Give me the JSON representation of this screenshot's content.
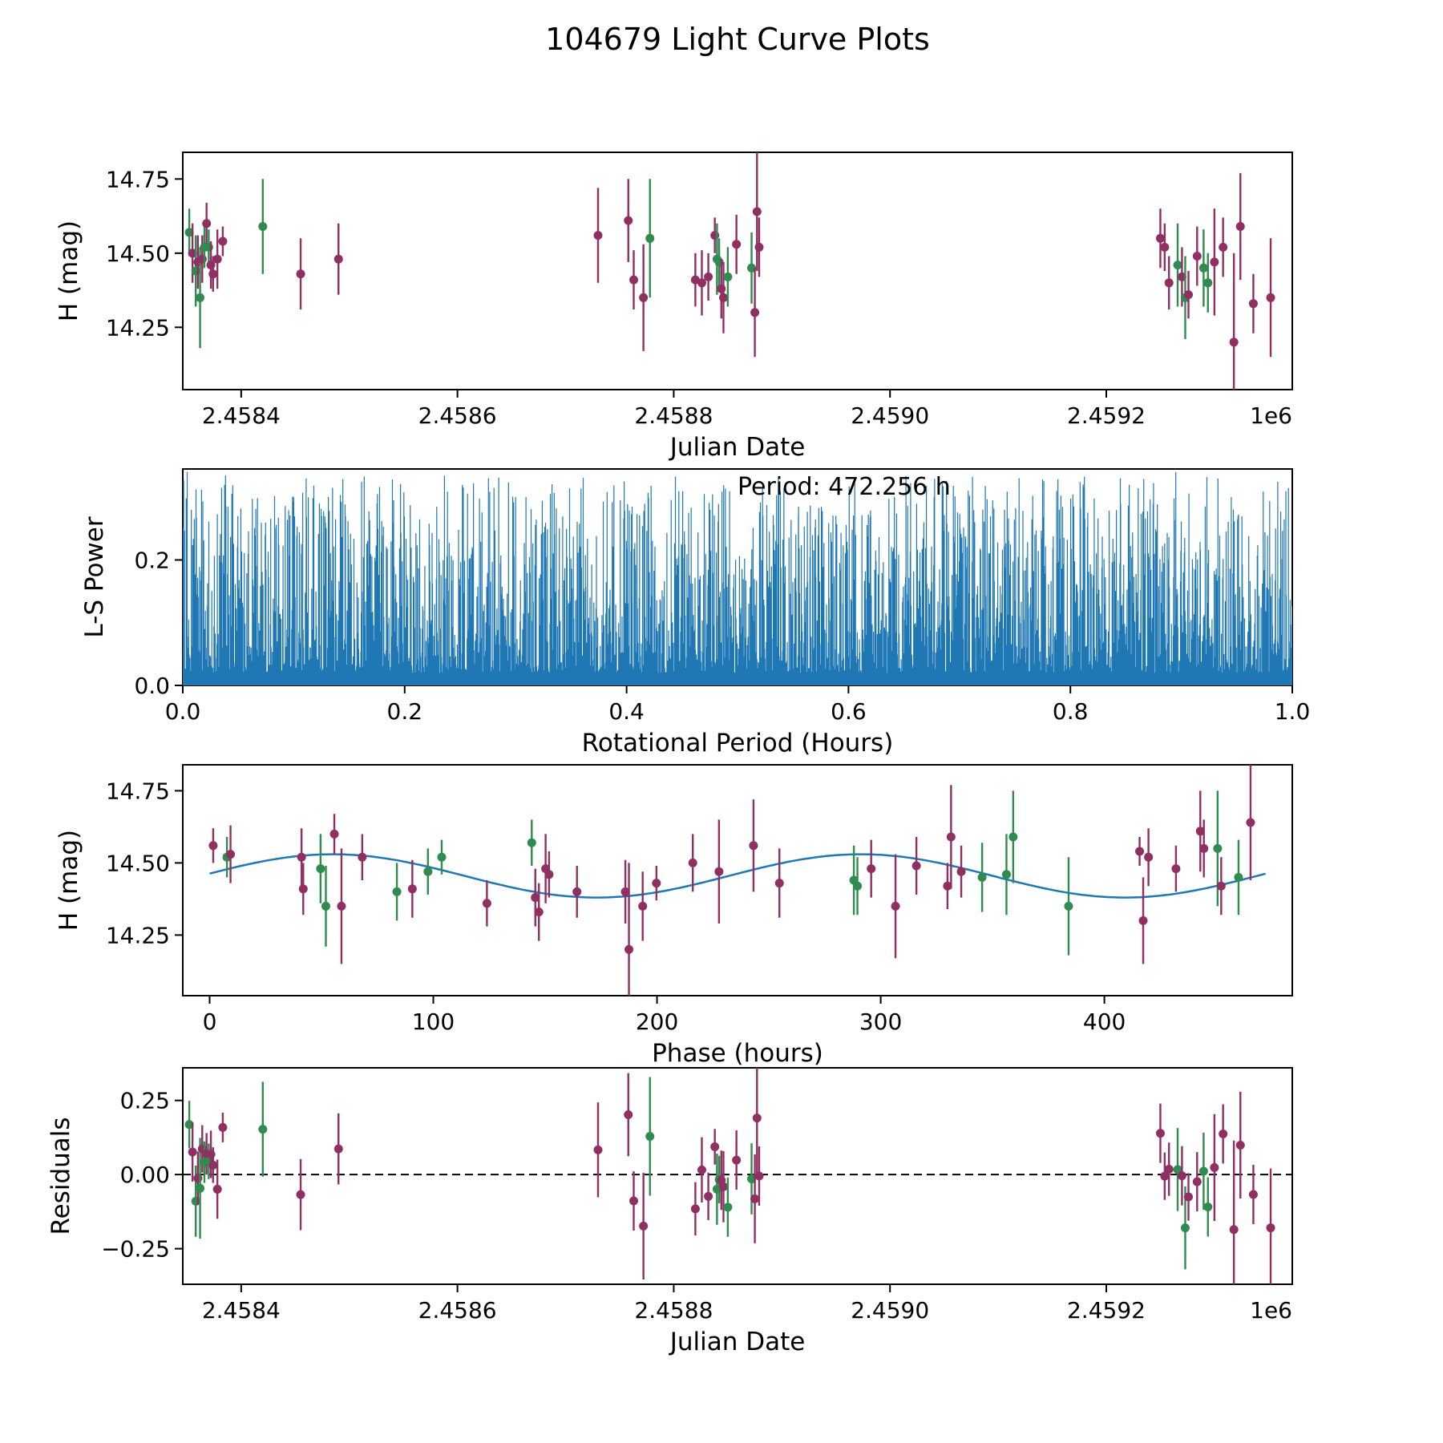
{
  "title": "104679 Light Curve Plots",
  "colors": {
    "purple": "#8f2f62",
    "green": "#2f8b4e",
    "blue": "#1f77b4",
    "axis": "#000000"
  },
  "chart_data": {
    "type": "scatter",
    "panels": [
      {
        "name": "light-curve",
        "type": "scatter",
        "xlabel": "Julian Date",
        "ylabel": "H (mag)",
        "offset_text": "1e6",
        "xlim": [
          2458346,
          2459372
        ],
        "ylim": [
          14.04,
          14.84
        ],
        "xticks": [
          {
            "v": 2458400,
            "label": "2.4584"
          },
          {
            "v": 2458600,
            "label": "2.4586"
          },
          {
            "v": 2458800,
            "label": "2.4588"
          },
          {
            "v": 2459000,
            "label": "2.4590"
          },
          {
            "v": 2459200,
            "label": "2.4592"
          }
        ],
        "yticks": [
          {
            "v": 14.25,
            "label": "14.25"
          },
          {
            "v": 14.5,
            "label": "14.50"
          },
          {
            "v": 14.75,
            "label": "14.75"
          }
        ]
      },
      {
        "name": "periodogram",
        "type": "bar",
        "xlabel": "Rotational Period (Hours)",
        "ylabel": "L-S Power",
        "annotation": "Period: 472.256 h",
        "xlim": [
          0,
          1
        ],
        "ylim": [
          0,
          0.345
        ],
        "xticks": [
          {
            "v": 0.0,
            "label": "0.0"
          },
          {
            "v": 0.2,
            "label": "0.2"
          },
          {
            "v": 0.4,
            "label": "0.4"
          },
          {
            "v": 0.6,
            "label": "0.6"
          },
          {
            "v": 0.8,
            "label": "0.8"
          },
          {
            "v": 1.0,
            "label": "1.0"
          }
        ],
        "yticks": [
          {
            "v": 0.0,
            "label": "0.0"
          },
          {
            "v": 0.2,
            "label": "0.2"
          }
        ],
        "n_lines": 2600,
        "seed": 73,
        "base": 0.02,
        "max_extra": 0.315,
        "shape_exp": 2.6,
        "peaks": [
          {
            "x": 0.004,
            "v": 0.34
          },
          {
            "x": 0.035,
            "v": 0.315
          },
          {
            "x": 0.1,
            "v": 0.3
          },
          {
            "x": 0.135,
            "v": 0.315
          },
          {
            "x": 0.19,
            "v": 0.295
          },
          {
            "x": 0.3,
            "v": 0.3
          },
          {
            "x": 0.405,
            "v": 0.285
          },
          {
            "x": 0.47,
            "v": 0.305
          },
          {
            "x": 0.555,
            "v": 0.285
          },
          {
            "x": 0.62,
            "v": 0.27
          },
          {
            "x": 0.73,
            "v": 0.295
          },
          {
            "x": 0.79,
            "v": 0.28
          },
          {
            "x": 0.845,
            "v": 0.33
          },
          {
            "x": 0.853,
            "v": 0.32
          },
          {
            "x": 0.895,
            "v": 0.34
          },
          {
            "x": 0.945,
            "v": 0.3
          },
          {
            "x": 0.985,
            "v": 0.25
          }
        ]
      },
      {
        "name": "phased-light-curve",
        "type": "scatter-with-fit",
        "xlabel": "Phase (hours)",
        "ylabel": "H (mag)",
        "xlim": [
          -12,
          484
        ],
        "ylim": [
          14.04,
          14.84
        ],
        "xticks": [
          {
            "v": 0,
            "label": "0"
          },
          {
            "v": 100,
            "label": "100"
          },
          {
            "v": 200,
            "label": "200"
          },
          {
            "v": 300,
            "label": "300"
          },
          {
            "v": 400,
            "label": "400"
          }
        ],
        "yticks": [
          {
            "v": 14.25,
            "label": "14.25"
          },
          {
            "v": 14.5,
            "label": "14.50"
          },
          {
            "v": 14.75,
            "label": "14.75"
          }
        ]
      },
      {
        "name": "residuals",
        "type": "scatter",
        "xlabel": "Julian Date",
        "ylabel": "Residuals",
        "offset_text": "1e6",
        "zero_line": true,
        "xlim": [
          2458346,
          2459372
        ],
        "ylim": [
          -0.37,
          0.36
        ],
        "xticks": [
          {
            "v": 2458400,
            "label": "2.4584"
          },
          {
            "v": 2458600,
            "label": "2.4586"
          },
          {
            "v": 2458800,
            "label": "2.4588"
          },
          {
            "v": 2459000,
            "label": "2.4590"
          },
          {
            "v": 2459200,
            "label": "2.4592"
          }
        ],
        "yticks": [
          {
            "v": -0.25,
            "label": "−0.25"
          },
          {
            "v": 0.0,
            "label": "0.00"
          },
          {
            "v": 0.25,
            "label": "0.25"
          }
        ]
      }
    ],
    "fold": {
      "period_hours": 472.256,
      "epoch_jd": 2458346,
      "mean": 14.455,
      "amplitude": 0.075,
      "phase0": 55
    },
    "observations": [
      [
        2458352,
        14.57,
        0.08,
        "g"
      ],
      [
        2458355,
        14.5,
        0.1,
        "p"
      ],
      [
        2458358,
        14.44,
        0.12,
        "g"
      ],
      [
        2458360,
        14.47,
        0.09,
        "p"
      ],
      [
        2458362,
        14.35,
        0.17,
        "g"
      ],
      [
        2458364,
        14.48,
        0.08,
        "p"
      ],
      [
        2458366,
        14.52,
        0.07,
        "g"
      ],
      [
        2458368,
        14.6,
        0.07,
        "p"
      ],
      [
        2458370,
        14.52,
        0.06,
        "g"
      ],
      [
        2458372,
        14.46,
        0.08,
        "p"
      ],
      [
        2458374,
        14.43,
        0.06,
        "p"
      ],
      [
        2458378,
        14.48,
        0.1,
        "p"
      ],
      [
        2458383,
        14.54,
        0.05,
        "p"
      ],
      [
        2458420,
        14.59,
        0.16,
        "g"
      ],
      [
        2458455,
        14.43,
        0.12,
        "p"
      ],
      [
        2458490,
        14.48,
        0.12,
        "p"
      ],
      [
        2458730,
        14.56,
        0.16,
        "p"
      ],
      [
        2458758,
        14.61,
        0.14,
        "p"
      ],
      [
        2458763,
        14.41,
        0.1,
        "p"
      ],
      [
        2458772,
        14.35,
        0.18,
        "p"
      ],
      [
        2458778,
        14.55,
        0.2,
        "g"
      ],
      [
        2458820,
        14.41,
        0.09,
        "p"
      ],
      [
        2458826,
        14.4,
        0.11,
        "p"
      ],
      [
        2458832,
        14.42,
        0.08,
        "p"
      ],
      [
        2458838,
        14.56,
        0.06,
        "p"
      ],
      [
        2458840,
        14.48,
        0.12,
        "g"
      ],
      [
        2458842,
        14.47,
        0.08,
        "g"
      ],
      [
        2458844,
        14.38,
        0.1,
        "p"
      ],
      [
        2458846,
        14.35,
        0.12,
        "p"
      ],
      [
        2458850,
        14.42,
        0.1,
        "g"
      ],
      [
        2458858,
        14.53,
        0.1,
        "p"
      ],
      [
        2458872,
        14.45,
        0.12,
        "g"
      ],
      [
        2458875,
        14.3,
        0.15,
        "p"
      ],
      [
        2458877,
        14.64,
        0.2,
        "p"
      ],
      [
        2458879,
        14.52,
        0.1,
        "p"
      ],
      [
        2459250,
        14.55,
        0.1,
        "p"
      ],
      [
        2459254,
        14.52,
        0.08,
        "p"
      ],
      [
        2459258,
        14.4,
        0.09,
        "p"
      ],
      [
        2459266,
        14.46,
        0.14,
        "g"
      ],
      [
        2459270,
        14.42,
        0.1,
        "p"
      ],
      [
        2459273,
        14.35,
        0.14,
        "g"
      ],
      [
        2459276,
        14.36,
        0.08,
        "p"
      ],
      [
        2459284,
        14.49,
        0.1,
        "p"
      ],
      [
        2459290,
        14.45,
        0.13,
        "g"
      ],
      [
        2459294,
        14.4,
        0.1,
        "g"
      ],
      [
        2459300,
        14.47,
        0.18,
        "p"
      ],
      [
        2459308,
        14.52,
        0.1,
        "p"
      ],
      [
        2459318,
        14.2,
        0.3,
        "p"
      ],
      [
        2459324,
        14.59,
        0.18,
        "p"
      ],
      [
        2459336,
        14.33,
        0.1,
        "p"
      ],
      [
        2459352,
        14.35,
        0.2,
        "p"
      ]
    ]
  }
}
